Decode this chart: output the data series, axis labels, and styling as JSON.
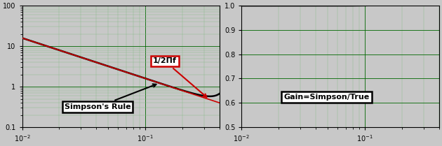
{
  "xlim": [
    0.01,
    0.4
  ],
  "left_ylim": [
    0.1,
    100
  ],
  "right_ylim": [
    0.5,
    1.0
  ],
  "right_yticks": [
    0.5,
    0.6,
    0.7,
    0.8,
    0.9,
    1.0
  ],
  "left_yticks": [
    0.1,
    1.0,
    10.0,
    100.0
  ],
  "left_yticklabels": [
    "0.1",
    "1",
    "10",
    "100"
  ],
  "background_color": "#c8c8c8",
  "grid_color_major": "#006600",
  "grid_color_minor": "#88bb88",
  "line_black_color": "#000000",
  "line_red_color": "#cc0000",
  "annotation_box_red_edge": "#cc0000",
  "annotation_box_black_edge": "#000000",
  "label_simpson": "Simpson's Rule",
  "label_red": "1/2Πf",
  "label_gain": "Gain=Simpson/True",
  "figsize": [
    6.3,
    2.09
  ],
  "dpi": 100
}
